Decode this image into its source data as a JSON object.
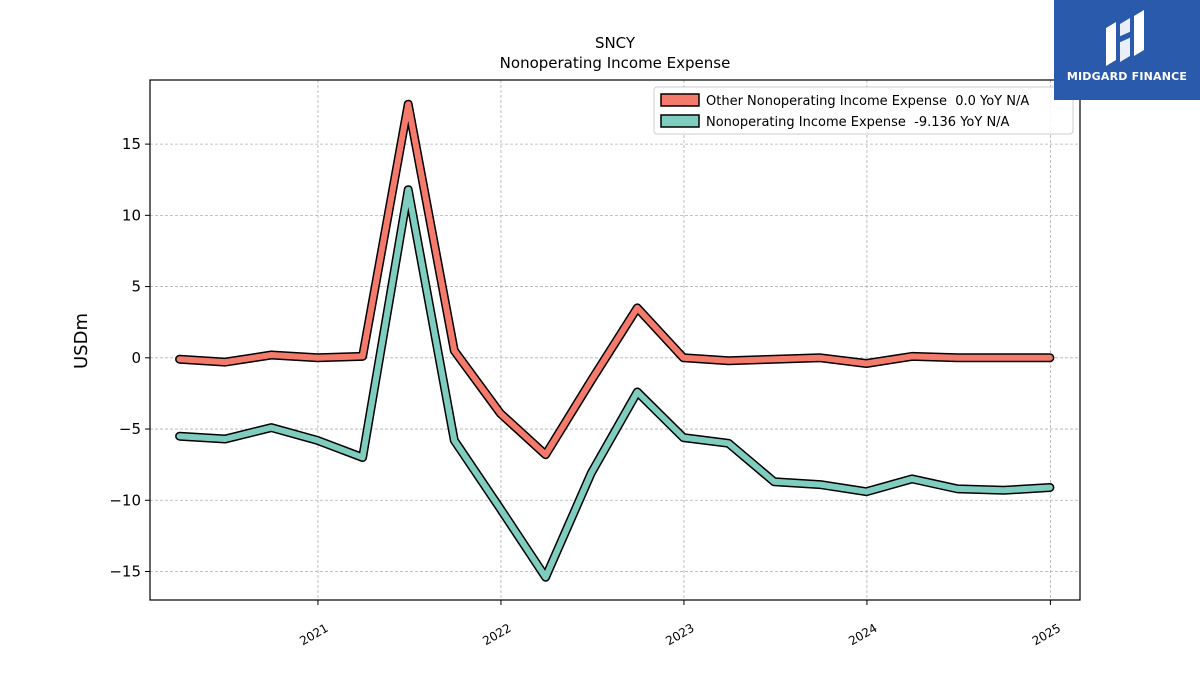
{
  "brand": {
    "name": "MIDGARD FINANCE",
    "bg_color": "#2a5aab",
    "icon": "midgard-logo-icon"
  },
  "chart_data": {
    "type": "line",
    "title": "SNCY",
    "subtitle": "Nonoperating Income Expense",
    "ylabel": "USDm",
    "xlabel": "",
    "ylim": [
      -17,
      19.5
    ],
    "xlim": [
      "2020-02-01",
      "2025-03-01"
    ],
    "yticks": [
      -15,
      -10,
      -5,
      0,
      5,
      10,
      15
    ],
    "ytick_labels": [
      "−15",
      "−10",
      "−5",
      "0",
      "5",
      "10",
      "15"
    ],
    "xticks": [
      "2021-01-01",
      "2022-01-01",
      "2023-01-01",
      "2024-01-01",
      "2025-01-01"
    ],
    "xtick_labels": [
      "2021",
      "2022",
      "2023",
      "2024",
      "2025"
    ],
    "grid": true,
    "legend_position": "top-right",
    "series": [
      {
        "name": "Other Nonoperating Income Expense  0.0 YoY N/A",
        "color": "#f47a6c",
        "x": [
          "2020-03-31",
          "2020-06-30",
          "2020-09-30",
          "2020-12-31",
          "2021-03-31",
          "2021-06-30",
          "2021-09-30",
          "2021-12-31",
          "2022-03-31",
          "2022-06-30",
          "2022-09-30",
          "2022-12-31",
          "2023-03-31",
          "2023-06-30",
          "2023-09-30",
          "2023-12-31",
          "2024-03-31",
          "2024-06-30",
          "2024-09-30",
          "2024-12-31"
        ],
        "y": [
          -0.1,
          -0.3,
          0.2,
          0.0,
          0.1,
          17.8,
          0.5,
          -3.9,
          -6.8,
          -1.6,
          3.5,
          0.0,
          -0.2,
          -0.1,
          0.0,
          -0.4,
          0.1,
          0.0,
          0.0,
          0.0
        ]
      },
      {
        "name": "Nonoperating Income Expense  -9.136 YoY N/A",
        "color": "#7ecdbf",
        "x": [
          "2020-03-31",
          "2020-06-30",
          "2020-09-30",
          "2020-12-31",
          "2021-03-31",
          "2021-06-30",
          "2021-09-30",
          "2021-12-31",
          "2022-03-31",
          "2022-06-30",
          "2022-09-30",
          "2022-12-31",
          "2023-03-31",
          "2023-06-30",
          "2023-09-30",
          "2023-12-31",
          "2024-03-31",
          "2024-06-30",
          "2024-09-30",
          "2024-12-31"
        ],
        "y": [
          -5.5,
          -5.7,
          -4.9,
          -5.8,
          -7.0,
          11.8,
          -5.8,
          -10.6,
          -15.4,
          -8.1,
          -2.4,
          -5.6,
          -6.0,
          -8.7,
          -8.9,
          -9.4,
          -8.5,
          -9.2,
          -9.3,
          -9.1
        ]
      }
    ]
  }
}
